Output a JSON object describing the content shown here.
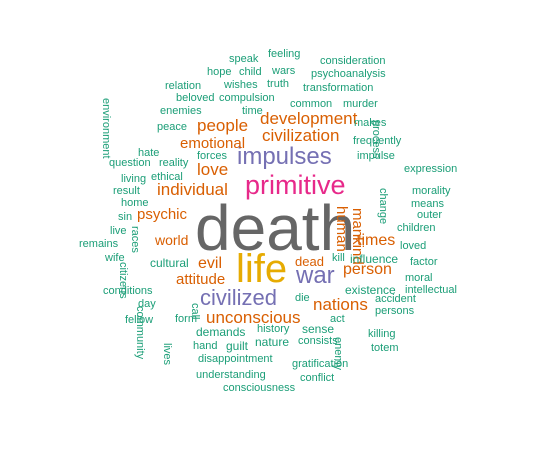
{
  "colors": {
    "gray": "#666666",
    "mustard": "#E6AB02",
    "magenta": "#E7298A",
    "purple": "#7570B3",
    "orange": "#D95F02",
    "teal": "#1B9E77"
  },
  "words": [
    {
      "text": "death",
      "color": "gray"
    },
    {
      "text": "life",
      "color": "mustard"
    },
    {
      "text": "primitive",
      "color": "magenta"
    },
    {
      "text": "impulses",
      "color": "purple"
    },
    {
      "text": "war",
      "color": "purple"
    },
    {
      "text": "civilized",
      "color": "purple"
    },
    {
      "text": "individual",
      "color": "orange"
    },
    {
      "text": "civilization",
      "color": "orange"
    },
    {
      "text": "development",
      "color": "orange"
    },
    {
      "text": "unconscious",
      "color": "orange"
    },
    {
      "text": "nations",
      "color": "orange"
    },
    {
      "text": "people",
      "color": "orange"
    },
    {
      "text": "love",
      "color": "orange"
    },
    {
      "text": "emotional",
      "color": "orange"
    },
    {
      "text": "person",
      "color": "orange"
    },
    {
      "text": "times",
      "color": "orange"
    },
    {
      "text": "attitude",
      "color": "orange"
    },
    {
      "text": "evil",
      "color": "orange"
    },
    {
      "text": "psychic",
      "color": "orange"
    },
    {
      "text": "world",
      "color": "orange"
    },
    {
      "text": "human",
      "color": "orange"
    },
    {
      "text": "mankind",
      "color": "orange"
    },
    {
      "text": "speak",
      "color": "teal"
    },
    {
      "text": "feeling",
      "color": "teal"
    },
    {
      "text": "consideration",
      "color": "teal"
    },
    {
      "text": "hope",
      "color": "teal"
    },
    {
      "text": "child",
      "color": "teal"
    },
    {
      "text": "wars",
      "color": "teal"
    },
    {
      "text": "psychoanalysis",
      "color": "teal"
    },
    {
      "text": "relation",
      "color": "teal"
    },
    {
      "text": "wishes",
      "color": "teal"
    },
    {
      "text": "truth",
      "color": "teal"
    },
    {
      "text": "transformation",
      "color": "teal"
    },
    {
      "text": "environment",
      "color": "teal"
    },
    {
      "text": "beloved",
      "color": "teal"
    },
    {
      "text": "compulsion",
      "color": "teal"
    },
    {
      "text": "enemies",
      "color": "teal"
    },
    {
      "text": "time",
      "color": "teal"
    },
    {
      "text": "common",
      "color": "teal"
    },
    {
      "text": "murder",
      "color": "teal"
    },
    {
      "text": "peace",
      "color": "teal"
    },
    {
      "text": "makes",
      "color": "teal"
    },
    {
      "text": "process",
      "color": "teal"
    },
    {
      "text": "frequently",
      "color": "teal"
    },
    {
      "text": "hate",
      "color": "teal"
    },
    {
      "text": "forces",
      "color": "teal"
    },
    {
      "text": "impulse",
      "color": "teal"
    },
    {
      "text": "question",
      "color": "teal"
    },
    {
      "text": "reality",
      "color": "teal"
    },
    {
      "text": "expression",
      "color": "teal"
    },
    {
      "text": "living",
      "color": "teal"
    },
    {
      "text": "ethical",
      "color": "teal"
    },
    {
      "text": "result",
      "color": "teal"
    },
    {
      "text": "change",
      "color": "teal"
    },
    {
      "text": "morality",
      "color": "teal"
    },
    {
      "text": "home",
      "color": "teal"
    },
    {
      "text": "means",
      "color": "teal"
    },
    {
      "text": "sin",
      "color": "teal"
    },
    {
      "text": "outer",
      "color": "teal"
    },
    {
      "text": "live",
      "color": "teal"
    },
    {
      "text": "races",
      "color": "teal"
    },
    {
      "text": "children",
      "color": "teal"
    },
    {
      "text": "remains",
      "color": "teal"
    },
    {
      "text": "loved",
      "color": "teal"
    },
    {
      "text": "wife",
      "color": "teal"
    },
    {
      "text": "citizens",
      "color": "teal"
    },
    {
      "text": "dead",
      "color": "orange"
    },
    {
      "text": "kill",
      "color": "teal"
    },
    {
      "text": "influence",
      "color": "teal"
    },
    {
      "text": "factor",
      "color": "teal"
    },
    {
      "text": "cultural",
      "color": "teal"
    },
    {
      "text": "moral",
      "color": "teal"
    },
    {
      "text": "existence",
      "color": "teal"
    },
    {
      "text": "conditions",
      "color": "teal"
    },
    {
      "text": "intellectual",
      "color": "teal"
    },
    {
      "text": "day",
      "color": "teal"
    },
    {
      "text": "call",
      "color": "teal"
    },
    {
      "text": "die",
      "color": "teal"
    },
    {
      "text": "accident",
      "color": "teal"
    },
    {
      "text": "persons",
      "color": "teal"
    },
    {
      "text": "fellow",
      "color": "teal"
    },
    {
      "text": "form",
      "color": "teal"
    },
    {
      "text": "community",
      "color": "teal"
    },
    {
      "text": "act",
      "color": "teal"
    },
    {
      "text": "history",
      "color": "teal"
    },
    {
      "text": "sense",
      "color": "teal"
    },
    {
      "text": "enemy",
      "color": "teal"
    },
    {
      "text": "killing",
      "color": "teal"
    },
    {
      "text": "demands",
      "color": "teal"
    },
    {
      "text": "hand",
      "color": "teal"
    },
    {
      "text": "guilt",
      "color": "teal"
    },
    {
      "text": "nature",
      "color": "teal"
    },
    {
      "text": "consists",
      "color": "teal"
    },
    {
      "text": "totem",
      "color": "teal"
    },
    {
      "text": "lives",
      "color": "teal"
    },
    {
      "text": "disappointment",
      "color": "teal"
    },
    {
      "text": "gratification",
      "color": "teal"
    },
    {
      "text": "understanding",
      "color": "teal"
    },
    {
      "text": "conflict",
      "color": "teal"
    },
    {
      "text": "consciousness",
      "color": "teal"
    }
  ]
}
